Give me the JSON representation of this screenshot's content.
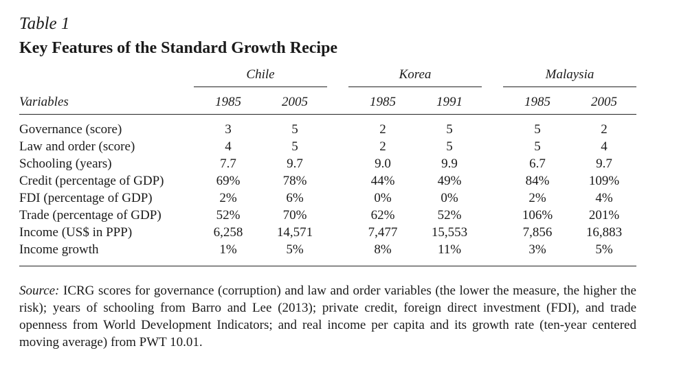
{
  "table": {
    "label": "Table 1",
    "title": "Key Features of the Standard Growth Recipe",
    "variables_header": "Variables",
    "groups": [
      {
        "name": "Chile",
        "years": [
          "1985",
          "2005"
        ]
      },
      {
        "name": "Korea",
        "years": [
          "1985",
          "1991"
        ]
      },
      {
        "name": "Malaysia",
        "years": [
          "1985",
          "2005"
        ]
      }
    ],
    "rows": [
      {
        "variable": "Governance (score)",
        "values": [
          "3",
          "5",
          "2",
          "5",
          "5",
          "2"
        ]
      },
      {
        "variable": "Law and order (score)",
        "values": [
          "4",
          "5",
          "2",
          "5",
          "5",
          "4"
        ]
      },
      {
        "variable": "Schooling (years)",
        "values": [
          "7.7",
          "9.7",
          "9.0",
          "9.9",
          "6.7",
          "9.7"
        ]
      },
      {
        "variable": "Credit (percentage of GDP)",
        "values": [
          "69%",
          "78%",
          "44%",
          "49%",
          "84%",
          "109%"
        ]
      },
      {
        "variable": "FDI (percentage of GDP)",
        "values": [
          "2%",
          "6%",
          "0%",
          "0%",
          "2%",
          "4%"
        ]
      },
      {
        "variable": "Trade (percentage of GDP)",
        "values": [
          "52%",
          "70%",
          "62%",
          "52%",
          "106%",
          "201%"
        ]
      },
      {
        "variable": "Income (US$ in PPP)",
        "values": [
          "6,258",
          "14,571",
          "7,477",
          "15,553",
          "7,856",
          "16,883"
        ]
      },
      {
        "variable": "Income growth",
        "values": [
          "1%",
          "5%",
          "8%",
          "11%",
          "3%",
          "5%"
        ]
      }
    ]
  },
  "source": {
    "label": "Source:",
    "text": "ICRG scores for governance (corruption) and law and order variables (the lower the measure, the higher the risk); years of schooling from Barro and Lee (2013); private credit, foreign direct investment (FDI), and trade openness from World Development Indicators; and real income per capita and its growth rate (ten-year centered moving average) from PWT 10.01."
  }
}
